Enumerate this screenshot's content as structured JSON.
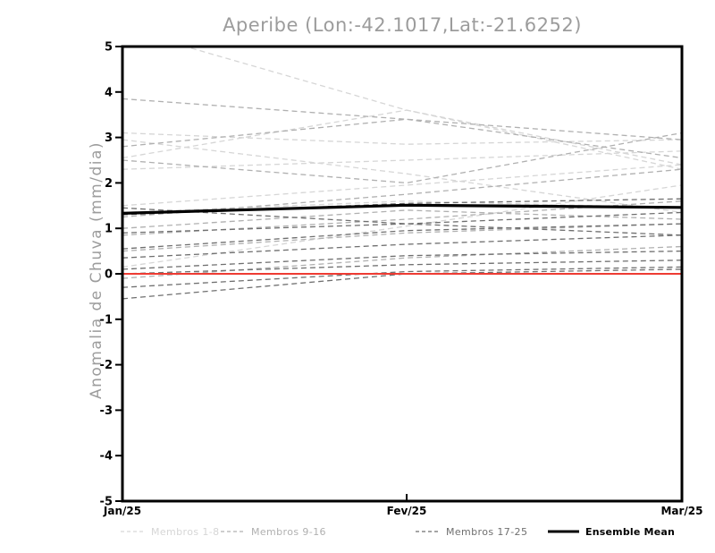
{
  "header": {
    "title": "Aperibe (Lon:-42.1017,Lat:-21.6252)"
  },
  "chart_data": {
    "type": "line",
    "title": "Aperibe (Lon:-42.1017,Lat:-21.6252)",
    "xlabel": "",
    "ylabel": "Anomalia de Chuva (mm/dia)",
    "x_categories": [
      "Jan/25",
      "Fev/25",
      "Mar/25"
    ],
    "ylim": [
      -5,
      5
    ],
    "yticks": [
      5,
      4,
      3,
      2,
      1,
      0,
      -1,
      -2,
      -3,
      -4,
      -5
    ],
    "grid": "off",
    "legend_position": "bottom",
    "frame_color": "#000000",
    "zero_line": {
      "value": 0,
      "color": "#ee3b33"
    },
    "groups": [
      {
        "name": "Membros 1-8",
        "color": "#d6d6d6",
        "style": "dashed",
        "series": [
          [
            5.4,
            3.6,
            2.3
          ],
          [
            3.1,
            2.85,
            2.95
          ],
          [
            2.55,
            3.6,
            2.4
          ],
          [
            2.3,
            2.5,
            2.7
          ],
          [
            2.95,
            2.2,
            1.35
          ],
          [
            1.5,
            1.95,
            2.4
          ],
          [
            1.35,
            1.6,
            1.45
          ],
          [
            0.15,
            1.05,
            1.95
          ]
        ]
      },
      {
        "name": "Membros 9-16",
        "color": "#b0b0b0",
        "style": "dashed",
        "series": [
          [
            3.85,
            3.4,
            2.95
          ],
          [
            2.8,
            3.4,
            2.55
          ],
          [
            2.5,
            2.0,
            3.1
          ],
          [
            1.25,
            1.75,
            2.3
          ],
          [
            1.0,
            1.4,
            1.2
          ],
          [
            0.85,
            1.2,
            1.6
          ],
          [
            0.5,
            0.9,
            1.1
          ],
          [
            -0.1,
            0.35,
            0.6
          ]
        ]
      },
      {
        "name": "Membros 17-25",
        "color": "#6f6f6f",
        "style": "dashed",
        "series": [
          [
            1.45,
            1.1,
            0.85
          ],
          [
            1.3,
            1.55,
            1.65
          ],
          [
            0.9,
            1.1,
            1.35
          ],
          [
            0.55,
            0.95,
            1.1
          ],
          [
            0.35,
            0.65,
            0.85
          ],
          [
            0.1,
            0.4,
            0.5
          ],
          [
            0.0,
            0.2,
            0.3
          ],
          [
            -0.3,
            0.05,
            0.15
          ],
          [
            -0.55,
            0.0,
            0.1
          ]
        ]
      }
    ],
    "mean": {
      "name": "Ensemble Mean",
      "color": "#000000",
      "values": [
        1.33,
        1.51,
        1.46
      ]
    }
  }
}
